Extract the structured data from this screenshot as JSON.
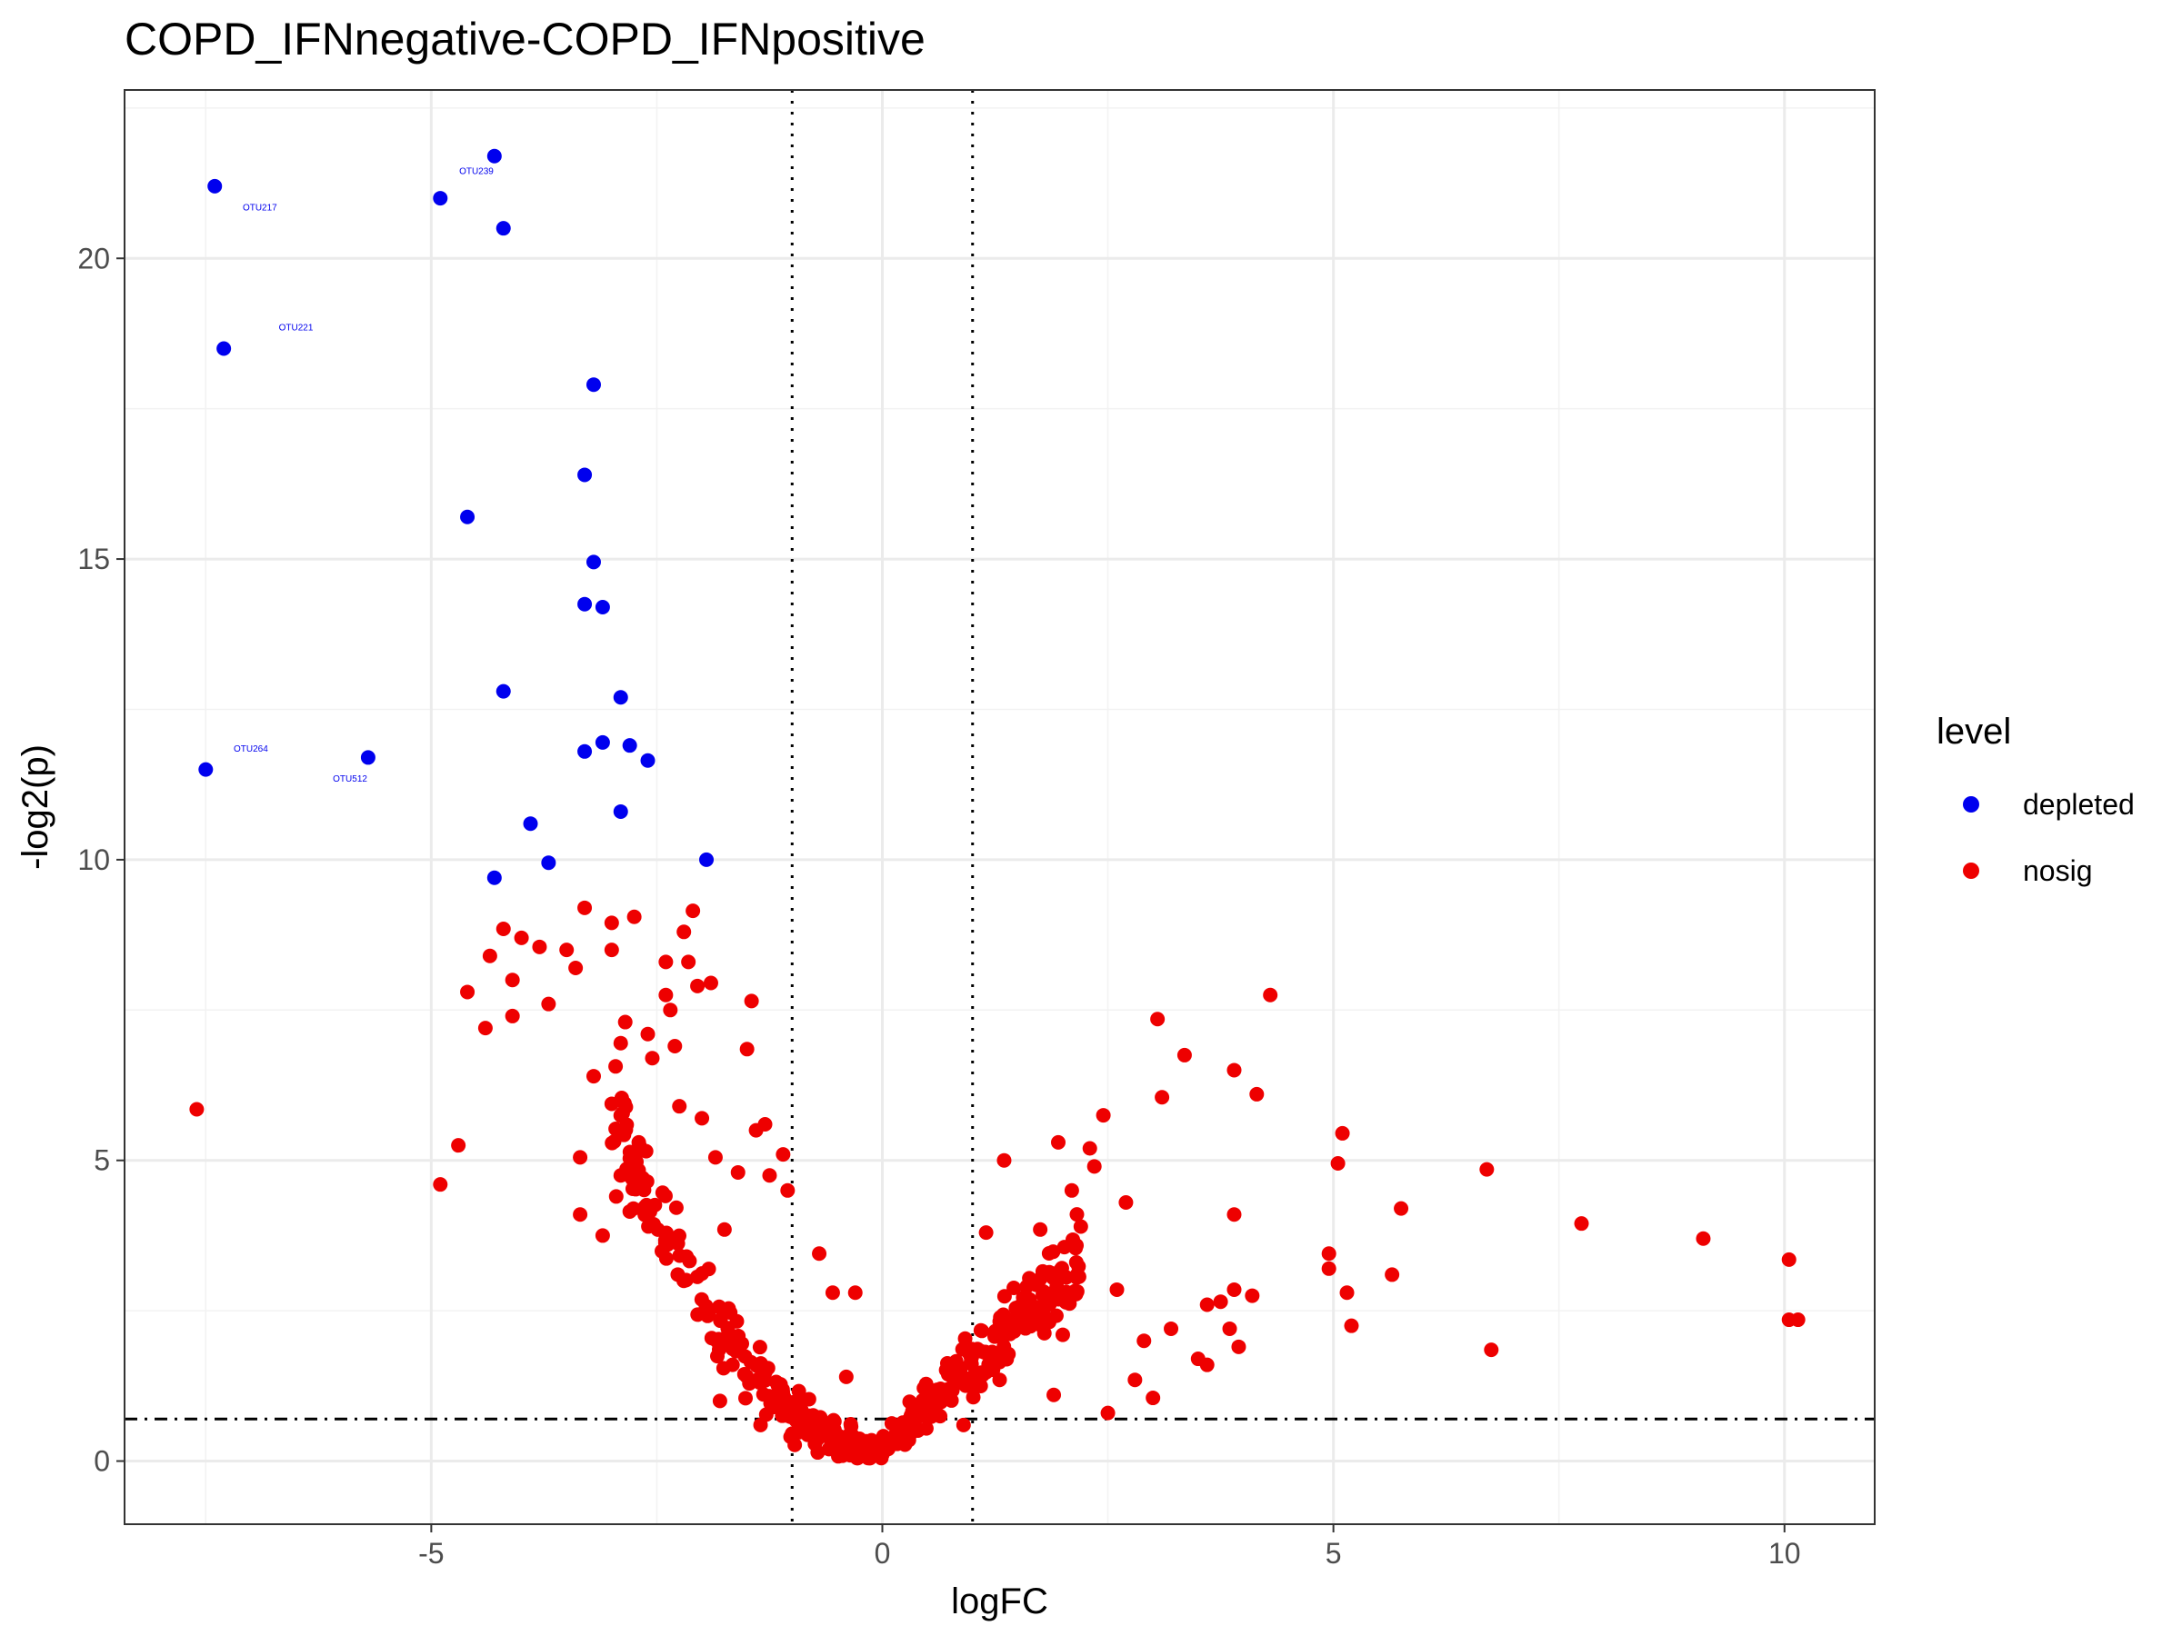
{
  "chart_data": {
    "type": "scatter",
    "title": "COPD_IFNnegative-COPD_IFNpositive",
    "xlabel": "logFC",
    "ylabel": "-log2(p)",
    "xlim": [
      -8.4,
      11.0
    ],
    "ylim": [
      -1.05,
      22.8
    ],
    "x_ticks": [
      -5,
      0,
      5,
      10
    ],
    "x_tick_labels": [
      "-5",
      "0",
      "5",
      "10"
    ],
    "y_ticks": [
      0,
      5,
      10,
      15,
      20
    ],
    "y_tick_labels": [
      "0",
      "5",
      "10",
      "15",
      "20"
    ],
    "grid": true,
    "vlines": [
      -1,
      1
    ],
    "hline": 0.7,
    "legend": {
      "title": "level",
      "position": "right",
      "entries": [
        {
          "label": "depleted",
          "color": "#0000ee"
        },
        {
          "label": "nosig",
          "color": "#ee0000"
        }
      ]
    },
    "point_labels": [
      {
        "text": "OTU217",
        "x": -6.9,
        "y": 20.8
      },
      {
        "text": "OTU239",
        "x": -4.5,
        "y": 21.4
      },
      {
        "text": "OTU221",
        "x": -6.5,
        "y": 18.8
      },
      {
        "text": "OTU264",
        "x": -7.0,
        "y": 11.8
      },
      {
        "text": "OTU512",
        "x": -5.9,
        "y": 11.3
      }
    ],
    "series": [
      {
        "name": "depleted",
        "color": "#0000ee",
        "points": [
          [
            -4.3,
            21.7
          ],
          [
            -7.4,
            21.2
          ],
          [
            -4.9,
            21.0
          ],
          [
            -4.2,
            20.5
          ],
          [
            -7.3,
            18.5
          ],
          [
            -3.2,
            17.9
          ],
          [
            -3.3,
            16.4
          ],
          [
            -4.6,
            15.7
          ],
          [
            -3.2,
            14.95
          ],
          [
            -3.3,
            14.25
          ],
          [
            -3.1,
            14.2
          ],
          [
            -4.2,
            12.8
          ],
          [
            -2.9,
            12.7
          ],
          [
            -3.1,
            11.95
          ],
          [
            -2.8,
            11.9
          ],
          [
            -3.3,
            11.8
          ],
          [
            -5.7,
            11.7
          ],
          [
            -2.6,
            11.65
          ],
          [
            -7.5,
            11.5
          ],
          [
            -2.9,
            10.8
          ],
          [
            -3.9,
            10.6
          ],
          [
            -3.7,
            9.95
          ],
          [
            -1.95,
            10.0
          ],
          [
            -4.3,
            9.7
          ]
        ]
      },
      {
        "name": "nosig",
        "color": "#ee0000",
        "points": [
          [
            -7.6,
            5.85
          ],
          [
            -4.9,
            4.6
          ],
          [
            -4.7,
            5.25
          ],
          [
            -4.6,
            7.8
          ],
          [
            -4.4,
            7.2
          ],
          [
            -4.35,
            8.4
          ],
          [
            -4.2,
            8.85
          ],
          [
            -4.1,
            8.0
          ],
          [
            -4.1,
            7.4
          ],
          [
            -4.0,
            8.7
          ],
          [
            -3.8,
            8.55
          ],
          [
            -3.7,
            7.6
          ],
          [
            -3.5,
            8.5
          ],
          [
            -3.4,
            8.2
          ],
          [
            -3.3,
            9.2
          ],
          [
            -3.35,
            5.05
          ],
          [
            -3.35,
            4.1
          ],
          [
            -3.2,
            6.4
          ],
          [
            -3.1,
            3.75
          ],
          [
            -3.0,
            8.95
          ],
          [
            -3.0,
            8.5
          ],
          [
            -2.9,
            6.95
          ],
          [
            -2.95,
            4.4
          ],
          [
            -2.9,
            4.75
          ],
          [
            -2.85,
            7.3
          ],
          [
            -2.8,
            4.15
          ],
          [
            -2.75,
            9.05
          ],
          [
            -2.7,
            5.3
          ],
          [
            -2.6,
            7.1
          ],
          [
            -2.55,
            6.7
          ],
          [
            -2.4,
            8.3
          ],
          [
            -2.4,
            7.75
          ],
          [
            -2.35,
            7.5
          ],
          [
            -2.3,
            6.9
          ],
          [
            -2.25,
            5.9
          ],
          [
            -2.2,
            8.8
          ],
          [
            -2.15,
            8.3
          ],
          [
            -2.1,
            9.15
          ],
          [
            -2.05,
            7.9
          ],
          [
            -2.0,
            5.7
          ],
          [
            -1.9,
            7.95
          ],
          [
            -1.85,
            5.05
          ],
          [
            -1.8,
            1.0
          ],
          [
            -1.75,
            3.85
          ],
          [
            -1.6,
            4.8
          ],
          [
            -1.5,
            6.85
          ],
          [
            -1.45,
            7.65
          ],
          [
            -1.4,
            5.5
          ],
          [
            -1.3,
            5.6
          ],
          [
            -1.25,
            4.75
          ],
          [
            -1.1,
            5.1
          ],
          [
            -1.05,
            4.5
          ],
          [
            -0.7,
            3.45
          ],
          [
            -0.55,
            2.8
          ],
          [
            -0.3,
            2.8
          ],
          [
            -0.4,
            1.4
          ],
          [
            -1.35,
            0.6
          ],
          [
            -1.2,
            0.9
          ],
          [
            -0.9,
            0.75
          ],
          [
            -0.6,
            0.55
          ],
          [
            1.35,
            5.0
          ],
          [
            1.75,
            3.85
          ],
          [
            1.95,
            5.3
          ],
          [
            2.1,
            4.5
          ],
          [
            2.2,
            3.9
          ],
          [
            2.3,
            5.2
          ],
          [
            2.35,
            4.9
          ],
          [
            2.45,
            5.75
          ],
          [
            2.7,
            4.3
          ],
          [
            2.9,
            2.0
          ],
          [
            3.0,
            1.05
          ],
          [
            3.05,
            7.35
          ],
          [
            3.1,
            6.05
          ],
          [
            3.35,
            6.75
          ],
          [
            3.5,
            1.7
          ],
          [
            3.6,
            1.6
          ],
          [
            3.6,
            2.6
          ],
          [
            3.75,
            2.65
          ],
          [
            3.85,
            2.2
          ],
          [
            3.9,
            6.5
          ],
          [
            3.9,
            4.1
          ],
          [
            3.9,
            2.85
          ],
          [
            3.95,
            1.9
          ],
          [
            4.1,
            2.75
          ],
          [
            4.15,
            6.1
          ],
          [
            4.3,
            7.75
          ],
          [
            4.95,
            3.45
          ],
          [
            4.95,
            3.2
          ],
          [
            5.05,
            4.95
          ],
          [
            5.1,
            5.45
          ],
          [
            5.15,
            2.8
          ],
          [
            5.2,
            2.25
          ],
          [
            5.65,
            3.1
          ],
          [
            5.75,
            4.2
          ],
          [
            6.7,
            4.85
          ],
          [
            6.75,
            1.85
          ],
          [
            7.75,
            3.95
          ],
          [
            9.1,
            3.7
          ],
          [
            10.05,
            3.35
          ],
          [
            10.05,
            2.35
          ],
          [
            10.15,
            2.35
          ],
          [
            2.5,
            0.8
          ],
          [
            1.3,
            1.35
          ],
          [
            0.9,
            0.6
          ],
          [
            1.9,
            1.1
          ],
          [
            2.8,
            1.35
          ],
          [
            3.2,
            2.2
          ],
          [
            1.6,
            2.9
          ],
          [
            2.0,
            2.1
          ],
          [
            2.6,
            2.85
          ],
          [
            1.15,
            3.8
          ]
        ]
      }
    ],
    "dense_bands": {
      "depleted_side": {
        "x_range": [
          -3.0,
          0.0
        ],
        "count": 230
      },
      "enriched_side": {
        "x_range": [
          0.0,
          2.2
        ],
        "count": 200
      }
    }
  }
}
